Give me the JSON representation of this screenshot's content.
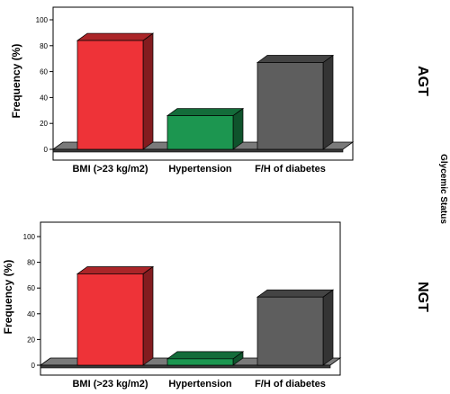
{
  "side_label": "Glycemic Status",
  "colors": [
    "#ee3338",
    "#1c9650",
    "#5e5e5e"
  ],
  "chart_data": [
    {
      "type": "bar",
      "panel_label": "AGT",
      "categories": [
        "BMI (>23 kg/m2)",
        "Hypertension",
        "F/H of diabetes"
      ],
      "values": [
        84,
        26,
        67
      ],
      "ylabel": "Frequency (%)",
      "ylim": [
        0,
        100
      ],
      "yticks": [
        0,
        20,
        40,
        60,
        80,
        100
      ],
      "grid": false
    },
    {
      "type": "bar",
      "panel_label": "NGT",
      "categories": [
        "BMI (>23 kg/m2)",
        "Hypertension",
        "F/H of diabetes"
      ],
      "values": [
        71,
        5,
        53
      ],
      "ylabel": "Frequency (%)",
      "ylim": [
        0,
        100
      ],
      "yticks": [
        0,
        20,
        40,
        60,
        80,
        100
      ],
      "grid": false
    }
  ]
}
